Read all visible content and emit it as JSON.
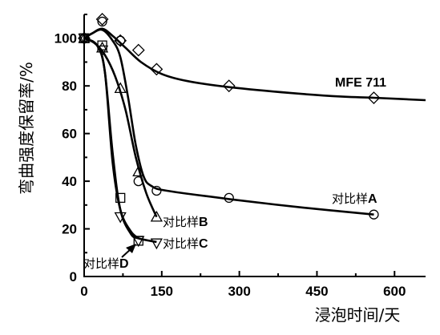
{
  "chart_data": {
    "type": "line",
    "xlabel": "浸泡时间/天",
    "ylabel": "弯曲强度保留率/%",
    "xlim": [
      0,
      660
    ],
    "ylim": [
      0,
      110
    ],
    "xticks": [
      0,
      150,
      300,
      450,
      600
    ],
    "yticks": [
      0,
      20,
      40,
      60,
      80,
      100
    ],
    "series": [
      {
        "name": "MFE 711",
        "marker": "diamond",
        "points": [
          [
            0,
            100
          ],
          [
            35,
            108
          ],
          [
            70,
            99
          ],
          [
            105,
            95
          ],
          [
            140,
            87
          ],
          [
            280,
            80
          ],
          [
            560,
            75
          ]
        ],
        "curve": [
          [
            0,
            100
          ],
          [
            15,
            102
          ],
          [
            35,
            104
          ],
          [
            55,
            101
          ],
          [
            80,
            96
          ],
          [
            110,
            90
          ],
          [
            150,
            85
          ],
          [
            200,
            82
          ],
          [
            280,
            79.5
          ],
          [
            400,
            77
          ],
          [
            500,
            75.5
          ],
          [
            560,
            75
          ],
          [
            660,
            74
          ]
        ]
      },
      {
        "name": "对比样A",
        "marker": "circle",
        "points": [
          [
            0,
            100
          ],
          [
            35,
            107
          ],
          [
            70,
            99
          ],
          [
            105,
            40
          ],
          [
            140,
            36
          ],
          [
            280,
            33
          ],
          [
            560,
            26
          ]
        ],
        "curve": [
          [
            0,
            100
          ],
          [
            15,
            102
          ],
          [
            35,
            103.5
          ],
          [
            55,
            99
          ],
          [
            70,
            92
          ],
          [
            85,
            75
          ],
          [
            100,
            55
          ],
          [
            115,
            42
          ],
          [
            130,
            38
          ],
          [
            160,
            36
          ],
          [
            280,
            32.5
          ],
          [
            420,
            29
          ],
          [
            560,
            26
          ]
        ]
      },
      {
        "name": "对比样B",
        "marker": "triangle-up",
        "points": [
          [
            0,
            100
          ],
          [
            35,
            96
          ],
          [
            70,
            79
          ],
          [
            105,
            44
          ],
          [
            140,
            25
          ]
        ],
        "curve": [
          [
            0,
            100
          ],
          [
            20,
            98
          ],
          [
            40,
            93
          ],
          [
            60,
            84
          ],
          [
            80,
            70
          ],
          [
            100,
            50
          ],
          [
            120,
            35
          ],
          [
            140,
            25
          ]
        ]
      },
      {
        "name": "对比样C",
        "marker": "triangle-down",
        "points": [
          [
            0,
            100
          ],
          [
            35,
            95
          ],
          [
            70,
            25
          ],
          [
            105,
            15
          ],
          [
            140,
            14
          ]
        ],
        "curve": [
          [
            0,
            100
          ],
          [
            25,
            97
          ],
          [
            40,
            86
          ],
          [
            55,
            52
          ],
          [
            70,
            28
          ],
          [
            90,
            18
          ],
          [
            105,
            16
          ],
          [
            140,
            14.5
          ]
        ]
      },
      {
        "name": "对比样D",
        "marker": "square",
        "points": [
          [
            0,
            100
          ],
          [
            35,
            97
          ],
          [
            70,
            33
          ],
          [
            105,
            15
          ]
        ],
        "curve": [
          [
            0,
            100
          ],
          [
            25,
            97
          ],
          [
            40,
            86
          ],
          [
            55,
            48
          ],
          [
            70,
            28
          ],
          [
            90,
            19
          ],
          [
            105,
            16
          ]
        ]
      }
    ],
    "annotations": [
      {
        "text": "MFE 711",
        "series": "MFE 711"
      },
      {
        "text": "对比样",
        "suffix": "A"
      },
      {
        "text": "对比样",
        "suffix": "B"
      },
      {
        "text": "对比样",
        "suffix": "C"
      },
      {
        "text": "对比样",
        "suffix": "D"
      }
    ],
    "grid": false,
    "legend": "none"
  }
}
